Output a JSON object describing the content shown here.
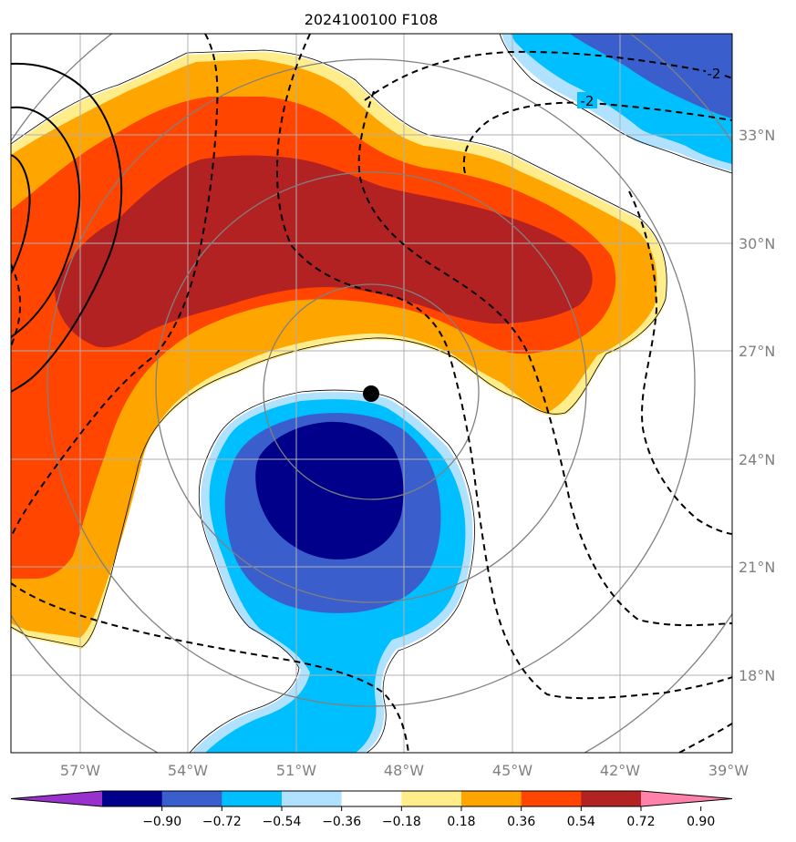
{
  "title": "2024100100 F108",
  "lon_labels": [
    "57°W",
    "54°W",
    "51°W",
    "48°W",
    "45°W",
    "42°W",
    "39°W"
  ],
  "lat_labels": [
    "33°N",
    "30°N",
    "27°N",
    "24°N",
    "21°N",
    "18°N"
  ],
  "contour_labels": [
    "-2",
    "-2"
  ],
  "colorbar": {
    "ticks": [
      "−0.90",
      "−0.72",
      "−0.54",
      "−0.36",
      "−0.18",
      "0.18",
      "0.36",
      "0.54",
      "0.72",
      "0.90"
    ],
    "colors": [
      "#9932CC",
      "#00008B",
      "#3A5FCD",
      "#00BFFF",
      "#B0E2FF",
      "#FFFFFF",
      "#FFEC8B",
      "#FFA500",
      "#FF4500",
      "#B22222",
      "#FF82AB"
    ]
  },
  "storm_center": {
    "lon": -49.0,
    "lat": 25.8
  }
}
